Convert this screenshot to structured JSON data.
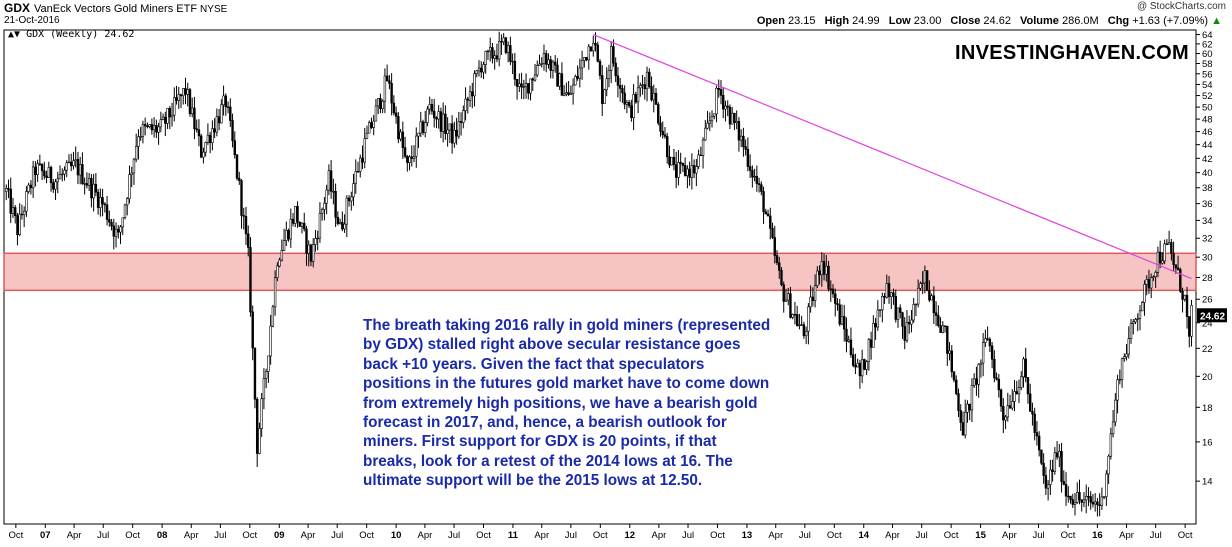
{
  "header": {
    "ticker": "GDX",
    "name": "VanEck Vectors Gold Miners ETF",
    "exchange": "NYSE",
    "date": "21-Oct-2016",
    "copyright": "@ StockCharts.com",
    "open_label": "Open",
    "open": "23.15",
    "high_label": "High",
    "high": "24.99",
    "low_label": "Low",
    "low": "23.00",
    "close_label": "Close",
    "close": "24.62",
    "volume_label": "Volume",
    "volume": "286.0M",
    "chg_label": "Chg",
    "chg": "+1.63 (+7.09%)",
    "chg_arrow": "▲"
  },
  "legend": "GDX (Weekly) 24.62",
  "watermark": "INVESTINGHAVEN.COM",
  "annotation": "The breath taking 2016 rally in gold miners (represented by GDX) stalled  right above secular resistance goes back +10 years. Given the fact that speculators positions in the futures gold market have to come down from extremely high positions, we have a bearish gold forecast in 2017, and, hence, a bearish outlook for miners. First support for GDX is 20 points, if that breaks, look for a retest of the 2014 lows at 16. The ultimate support will be the 2015 lows at 12.50.",
  "colors": {
    "candle": "#000000",
    "resistance_band_fill": "#f7c4c4",
    "resistance_band_border": "#e05a5a",
    "trendline": "#e040e0",
    "annotation_text": "#1a2aa8",
    "last_price_box": "#000000"
  },
  "chart_data": {
    "type": "candlestick",
    "title": "GDX VanEck Vectors Gold Miners ETF NYSE",
    "interval": "Weekly",
    "last_price": 24.62,
    "last_price_label": "24.62",
    "y_scale": "log",
    "y_ticks": [
      14,
      16,
      18,
      20,
      22,
      24,
      26,
      28,
      30,
      32,
      34,
      36,
      38,
      40,
      42,
      44,
      46,
      48,
      50,
      52,
      54,
      56,
      58,
      60,
      62,
      64
    ],
    "ylim": [
      12.1,
      65
    ],
    "x_ticks": [
      "Oct",
      "07",
      "Apr",
      "Jul",
      "Oct",
      "08",
      "Apr",
      "Jul",
      "Oct",
      "09",
      "Apr",
      "Jul",
      "Oct",
      "10",
      "Apr",
      "Jul",
      "Oct",
      "11",
      "Apr",
      "Jul",
      "Oct",
      "12",
      "Apr",
      "Jul",
      "Oct",
      "13",
      "Apr",
      "Jul",
      "Oct",
      "14",
      "Apr",
      "Jul",
      "Oct",
      "15",
      "Apr",
      "Jul",
      "Oct",
      "16",
      "Apr",
      "Jul",
      "Oct"
    ],
    "xlim": [
      "2006-08-25",
      "2016-11-04"
    ],
    "resistance_band": {
      "low": 26.8,
      "high": 30.4,
      "from": "2006-08-25",
      "to": "2016-11-04"
    },
    "trendline": {
      "start": {
        "date": "2011-09-09",
        "value": 64.0
      },
      "end": {
        "date": "2016-10-21",
        "value": 27.9
      }
    },
    "path_points": [
      {
        "date": "2006-09-01",
        "value": 37.5
      },
      {
        "date": "2006-10-06",
        "value": 33.0
      },
      {
        "date": "2006-12-01",
        "value": 40.5
      },
      {
        "date": "2007-02-02",
        "value": 39.0
      },
      {
        "date": "2007-04-06",
        "value": 41.0
      },
      {
        "date": "2007-06-29",
        "value": 36.0
      },
      {
        "date": "2007-08-17",
        "value": 32.0
      },
      {
        "date": "2007-10-19",
        "value": 46.0
      },
      {
        "date": "2007-12-28",
        "value": 46.5
      },
      {
        "date": "2008-03-14",
        "value": 53.0
      },
      {
        "date": "2008-05-02",
        "value": 43.0
      },
      {
        "date": "2008-07-18",
        "value": 51.0
      },
      {
        "date": "2008-08-29",
        "value": 38.0
      },
      {
        "date": "2008-09-26",
        "value": 30.0
      },
      {
        "date": "2008-10-24",
        "value": 15.8
      },
      {
        "date": "2008-11-21",
        "value": 20.5
      },
      {
        "date": "2008-12-26",
        "value": 30.0
      },
      {
        "date": "2009-02-20",
        "value": 35.0
      },
      {
        "date": "2009-04-10",
        "value": 30.0
      },
      {
        "date": "2009-06-05",
        "value": 39.0
      },
      {
        "date": "2009-07-10",
        "value": 33.0
      },
      {
        "date": "2009-09-25",
        "value": 44.0
      },
      {
        "date": "2009-12-04",
        "value": 55.0
      },
      {
        "date": "2010-02-05",
        "value": 40.5
      },
      {
        "date": "2010-04-16",
        "value": 50.0
      },
      {
        "date": "2010-07-02",
        "value": 45.0
      },
      {
        "date": "2010-09-24",
        "value": 58.0
      },
      {
        "date": "2010-12-10",
        "value": 62.0
      },
      {
        "date": "2011-01-28",
        "value": 52.0
      },
      {
        "date": "2011-04-08",
        "value": 60.0
      },
      {
        "date": "2011-06-24",
        "value": 51.5
      },
      {
        "date": "2011-09-09",
        "value": 64.0
      },
      {
        "date": "2011-10-07",
        "value": 52.0
      },
      {
        "date": "2011-11-04",
        "value": 60.0
      },
      {
        "date": "2011-12-30",
        "value": 49.0
      },
      {
        "date": "2012-02-24",
        "value": 56.0
      },
      {
        "date": "2012-05-18",
        "value": 40.0
      },
      {
        "date": "2012-07-27",
        "value": 40.5
      },
      {
        "date": "2012-10-05",
        "value": 53.0
      },
      {
        "date": "2012-12-21",
        "value": 44.0
      },
      {
        "date": "2013-02-22",
        "value": 36.0
      },
      {
        "date": "2013-04-19",
        "value": 27.0
      },
      {
        "date": "2013-06-28",
        "value": 23.0
      },
      {
        "date": "2013-08-23",
        "value": 30.0
      },
      {
        "date": "2013-10-11",
        "value": 25.0
      },
      {
        "date": "2013-12-20",
        "value": 20.0
      },
      {
        "date": "2014-03-14",
        "value": 27.5
      },
      {
        "date": "2014-05-09",
        "value": 23.0
      },
      {
        "date": "2014-07-11",
        "value": 28.0
      },
      {
        "date": "2014-09-12",
        "value": 23.0
      },
      {
        "date": "2014-11-07",
        "value": 16.8
      },
      {
        "date": "2015-01-23",
        "value": 23.0
      },
      {
        "date": "2015-03-13",
        "value": 17.5
      },
      {
        "date": "2015-05-15",
        "value": 20.5
      },
      {
        "date": "2015-07-24",
        "value": 13.5
      },
      {
        "date": "2015-08-28",
        "value": 15.5
      },
      {
        "date": "2015-09-25",
        "value": 13.5
      },
      {
        "date": "2015-11-20",
        "value": 13.0
      },
      {
        "date": "2016-01-15",
        "value": 13.0
      },
      {
        "date": "2016-03-11",
        "value": 20.5
      },
      {
        "date": "2016-05-06",
        "value": 25.0
      },
      {
        "date": "2016-07-08",
        "value": 30.0
      },
      {
        "date": "2016-08-12",
        "value": 31.0
      },
      {
        "date": "2016-09-30",
        "value": 26.0
      },
      {
        "date": "2016-10-14",
        "value": 22.5
      },
      {
        "date": "2016-10-21",
        "value": 24.62
      }
    ]
  }
}
